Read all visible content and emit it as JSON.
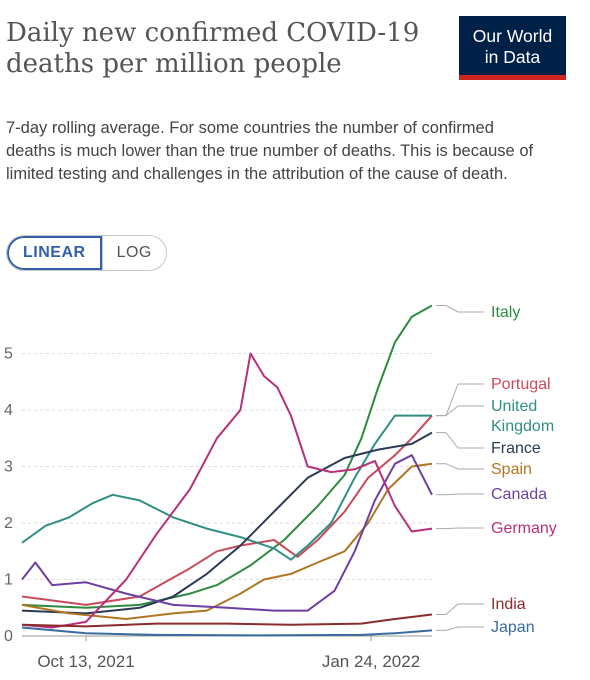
{
  "header": {
    "title": "Daily new confirmed COVID-19 deaths per million people",
    "subtitle": "7-day rolling average. For some countries the number of confirmed deaths is much lower than the true number of deaths. This is because of limited testing and challenges in the attribution of the cause of death."
  },
  "logo": {
    "line1": "Our World",
    "line2": "in Data"
  },
  "scale_toggle": {
    "options": [
      "LINEAR",
      "LOG"
    ],
    "selected": "LINEAR"
  },
  "chart_data": {
    "type": "line",
    "x_axis": {
      "start": "2021-10-01",
      "end": "2022-01-31",
      "tick_labels": [
        "Oct 13, 2021",
        "Jan 24, 2022"
      ]
    },
    "y_axis": {
      "ylim": [
        0,
        6
      ],
      "ticks": [
        "0",
        "1",
        "2",
        "3",
        "4",
        "5"
      ]
    },
    "grid": "horizontal dashed",
    "legend": "right (direct labels)",
    "series": [
      {
        "name": "Italy",
        "color": "#2e8b3e",
        "label_display": "Italy",
        "points": [
          [
            "2021-10-01",
            0.55
          ],
          [
            "2021-10-20",
            0.5
          ],
          [
            "2021-11-05",
            0.55
          ],
          [
            "2021-11-20",
            0.75
          ],
          [
            "2021-11-28",
            0.9
          ],
          [
            "2021-12-08",
            1.25
          ],
          [
            "2021-12-18",
            1.7
          ],
          [
            "2021-12-28",
            2.3
          ],
          [
            "2022-01-05",
            2.85
          ],
          [
            "2022-01-10",
            3.5
          ],
          [
            "2022-01-15",
            4.4
          ],
          [
            "2022-01-20",
            5.2
          ],
          [
            "2022-01-25",
            5.65
          ],
          [
            "2022-01-31",
            5.85
          ]
        ]
      },
      {
        "name": "Portugal",
        "color": "#c94a5a",
        "label_display": "Portugal",
        "points": [
          [
            "2021-10-01",
            0.7
          ],
          [
            "2021-10-20",
            0.55
          ],
          [
            "2021-11-05",
            0.7
          ],
          [
            "2021-11-20",
            1.2
          ],
          [
            "2021-11-28",
            1.5
          ],
          [
            "2021-12-05",
            1.6
          ],
          [
            "2021-12-15",
            1.7
          ],
          [
            "2021-12-22",
            1.4
          ],
          [
            "2021-12-28",
            1.7
          ],
          [
            "2022-01-05",
            2.2
          ],
          [
            "2022-01-12",
            2.8
          ],
          [
            "2022-01-20",
            3.2
          ],
          [
            "2022-01-25",
            3.5
          ],
          [
            "2022-01-31",
            3.9
          ]
        ]
      },
      {
        "name": "United Kingdom",
        "color": "#2f8f85",
        "label_display": "United Kingdom",
        "points": [
          [
            "2021-10-01",
            1.65
          ],
          [
            "2021-10-08",
            1.95
          ],
          [
            "2021-10-15",
            2.1
          ],
          [
            "2021-10-22",
            2.35
          ],
          [
            "2021-10-28",
            2.5
          ],
          [
            "2021-11-05",
            2.4
          ],
          [
            "2021-11-15",
            2.1
          ],
          [
            "2021-11-25",
            1.9
          ],
          [
            "2021-12-05",
            1.75
          ],
          [
            "2021-12-15",
            1.55
          ],
          [
            "2021-12-20",
            1.35
          ],
          [
            "2021-12-25",
            1.6
          ],
          [
            "2022-01-01",
            2.0
          ],
          [
            "2022-01-08",
            2.8
          ],
          [
            "2022-01-14",
            3.4
          ],
          [
            "2022-01-20",
            3.9
          ],
          [
            "2022-01-31",
            3.9
          ]
        ]
      },
      {
        "name": "France",
        "color": "#2b3a55",
        "label_display": "France",
        "points": [
          [
            "2021-10-01",
            0.45
          ],
          [
            "2021-10-20",
            0.4
          ],
          [
            "2021-11-05",
            0.5
          ],
          [
            "2021-11-15",
            0.7
          ],
          [
            "2021-11-25",
            1.1
          ],
          [
            "2021-12-05",
            1.6
          ],
          [
            "2021-12-15",
            2.2
          ],
          [
            "2021-12-25",
            2.8
          ],
          [
            "2022-01-05",
            3.15
          ],
          [
            "2022-01-15",
            3.3
          ],
          [
            "2022-01-25",
            3.4
          ],
          [
            "2022-01-31",
            3.6
          ]
        ]
      },
      {
        "name": "Spain",
        "color": "#b07622",
        "label_display": "Spain",
        "points": [
          [
            "2021-10-01",
            0.55
          ],
          [
            "2021-10-15",
            0.4
          ],
          [
            "2021-11-01",
            0.3
          ],
          [
            "2021-11-15",
            0.4
          ],
          [
            "2021-11-25",
            0.45
          ],
          [
            "2021-12-05",
            0.75
          ],
          [
            "2021-12-12",
            1.0
          ],
          [
            "2021-12-20",
            1.1
          ],
          [
            "2021-12-28",
            1.3
          ],
          [
            "2022-01-05",
            1.5
          ],
          [
            "2022-01-12",
            2.0
          ],
          [
            "2022-01-18",
            2.6
          ],
          [
            "2022-01-25",
            3.0
          ],
          [
            "2022-01-31",
            3.05
          ]
        ]
      },
      {
        "name": "Canada",
        "color": "#6e3fa3",
        "label_display": "Canada",
        "points": [
          [
            "2021-10-01",
            1.0
          ],
          [
            "2021-10-05",
            1.3
          ],
          [
            "2021-10-10",
            0.9
          ],
          [
            "2021-10-20",
            0.95
          ],
          [
            "2021-11-01",
            0.75
          ],
          [
            "2021-11-15",
            0.55
          ],
          [
            "2021-12-01",
            0.5
          ],
          [
            "2021-12-15",
            0.45
          ],
          [
            "2021-12-25",
            0.45
          ],
          [
            "2022-01-02",
            0.8
          ],
          [
            "2022-01-08",
            1.5
          ],
          [
            "2022-01-14",
            2.4
          ],
          [
            "2022-01-20",
            3.05
          ],
          [
            "2022-01-25",
            3.2
          ],
          [
            "2022-01-31",
            2.5
          ]
        ]
      },
      {
        "name": "Germany",
        "color": "#b8307a",
        "label_display": "Germany",
        "points": [
          [
            "2021-10-01",
            0.2
          ],
          [
            "2021-10-10",
            0.15
          ],
          [
            "2021-10-20",
            0.25
          ],
          [
            "2021-11-01",
            1.0
          ],
          [
            "2021-11-10",
            1.8
          ],
          [
            "2021-11-20",
            2.6
          ],
          [
            "2021-11-28",
            3.5
          ],
          [
            "2021-12-05",
            4.0
          ],
          [
            "2021-12-08",
            5.0
          ],
          [
            "2021-12-12",
            4.6
          ],
          [
            "2021-12-16",
            4.4
          ],
          [
            "2021-12-20",
            3.9
          ],
          [
            "2021-12-25",
            3.0
          ],
          [
            "2022-01-01",
            2.9
          ],
          [
            "2022-01-08",
            2.95
          ],
          [
            "2022-01-14",
            3.1
          ],
          [
            "2022-01-20",
            2.3
          ],
          [
            "2022-01-25",
            1.85
          ],
          [
            "2022-01-31",
            1.9
          ]
        ]
      },
      {
        "name": "India",
        "color": "#8b2b2b",
        "label_display": "India",
        "points": [
          [
            "2021-10-01",
            0.2
          ],
          [
            "2021-10-20",
            0.17
          ],
          [
            "2021-11-10",
            0.22
          ],
          [
            "2021-12-01",
            0.22
          ],
          [
            "2021-12-20",
            0.2
          ],
          [
            "2022-01-10",
            0.22
          ],
          [
            "2022-01-20",
            0.3
          ],
          [
            "2022-01-31",
            0.38
          ]
        ]
      },
      {
        "name": "Japan",
        "color": "#3a6a9e",
        "label_display": "Japan",
        "points": [
          [
            "2021-10-01",
            0.15
          ],
          [
            "2021-10-20",
            0.05
          ],
          [
            "2021-11-10",
            0.02
          ],
          [
            "2021-12-10",
            0.01
          ],
          [
            "2022-01-10",
            0.02
          ],
          [
            "2022-01-20",
            0.05
          ],
          [
            "2022-01-31",
            0.1
          ]
        ]
      }
    ]
  }
}
